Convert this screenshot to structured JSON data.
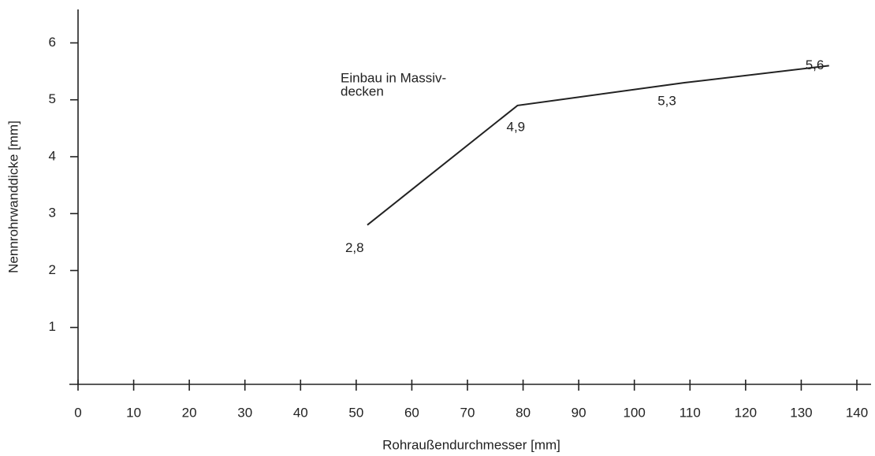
{
  "chart_data": {
    "type": "line",
    "x_label": "Rohraußendurchmesser [mm]",
    "y_label": "Nennrohrwanddicke [mm]",
    "annotation": [
      "Einbau in Massiv-",
      "decken"
    ],
    "x": [
      52,
      79,
      109,
      135
    ],
    "series": [
      {
        "color": "#222222",
        "values": [
          2.8,
          4.9,
          5.3,
          5.6
        ],
        "value_labels": [
          "2,8",
          "4,9",
          "5,3",
          "5,6"
        ]
      }
    ],
    "xlim": [
      0,
      140
    ],
    "xticks": [
      0,
      10,
      20,
      30,
      40,
      50,
      60,
      70,
      80,
      90,
      100,
      110,
      120,
      130,
      140
    ],
    "ylim": [
      0,
      6.56
    ],
    "yticks": [
      1,
      2,
      3,
      4,
      5,
      6
    ]
  }
}
